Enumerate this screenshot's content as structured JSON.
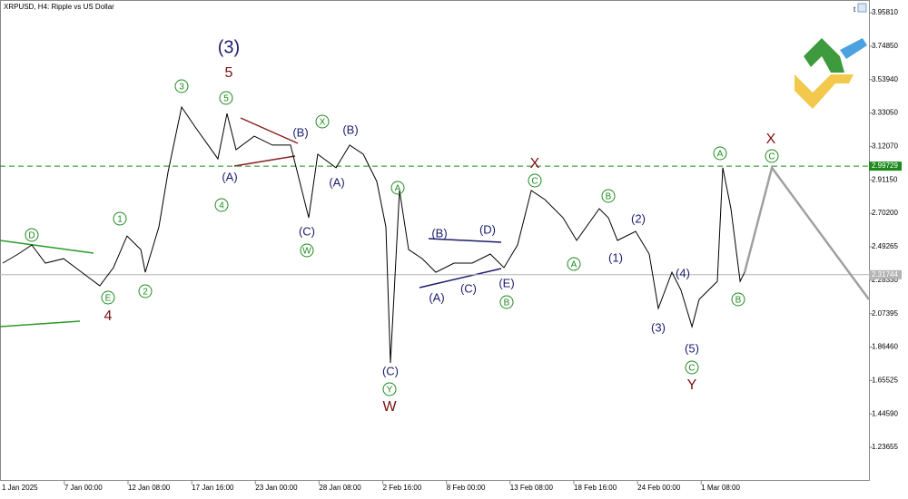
{
  "chart_data": {
    "type": "line",
    "title": "XRPUSD, H4:  Ripple vs US Dollar",
    "series": [
      {
        "color": "#000000",
        "x": [
          0.84,
          2.13,
          3.27,
          4.41,
          5.93,
          7.45,
          8.97,
          10.11,
          11.25,
          12.4,
          12.78,
          13.92,
          14.68,
          15.82,
          16.96,
          18.86,
          19.62,
          20.38,
          21.9,
          23.42,
          24.94,
          26.46,
          27.22,
          28.75,
          29.89,
          31.03,
          32.17,
          32.93,
          33.31,
          34.07,
          34.83,
          35.97,
          37.11,
          38.63,
          40.15,
          41.67,
          42.81,
          43.95,
          45.1,
          46.24,
          47.76,
          48.9,
          50.8,
          51.56,
          52.32,
          53.84,
          54.98,
          55.74,
          56.88,
          57.64,
          58.56,
          59.16,
          60.68,
          61.14,
          61.82,
          62.59,
          62.97
        ],
        "values": [
          2.39,
          2.447,
          2.504,
          2.39,
          2.418,
          2.333,
          2.248,
          2.362,
          2.56,
          2.475,
          2.333,
          2.617,
          2.958,
          3.367,
          3.242,
          3.043,
          3.327,
          3.1,
          3.185,
          3.129,
          3.129,
          2.674,
          3.072,
          2.987,
          3.129,
          3.072,
          2.901,
          2.617,
          1.765,
          2.845,
          2.475,
          2.418,
          2.333,
          2.39,
          2.39,
          2.447,
          2.362,
          2.504,
          2.845,
          2.788,
          2.674,
          2.532,
          2.731,
          2.674,
          2.532,
          2.589,
          2.447,
          2.106,
          2.333,
          2.22,
          1.992,
          2.163,
          2.276,
          2.987,
          2.731,
          2.276,
          2.333
        ]
      },
      {
        "color": "#a0a0a0",
        "x": [
          62.97,
          65.25,
          73.38
        ],
        "values": [
          2.333,
          2.987,
          2.163
        ]
      }
    ],
    "xlim": [
      0.61,
      73.38
    ],
    "xticks": [
      {
        "value": 0,
        "label": "1 Jan 2025"
      },
      {
        "value": 6,
        "label": "7 Jan 00:00"
      },
      {
        "value": 11.33,
        "label": "12 Jan 08:00"
      },
      {
        "value": 16.67,
        "label": "17 Jan 16:00"
      },
      {
        "value": 22,
        "label": "23 Jan 00:00"
      },
      {
        "value": 27.33,
        "label": "28 Jan 08:00"
      },
      {
        "value": 32.67,
        "label": "2 Feb 16:00"
      },
      {
        "value": 38,
        "label": "8 Feb 00:00"
      },
      {
        "value": 43.33,
        "label": "13 Feb 08:00"
      },
      {
        "value": 48.67,
        "label": "18 Feb 16:00"
      },
      {
        "value": 54,
        "label": "24 Feb 00:00"
      },
      {
        "value": 59.33,
        "label": "1 Mar 08:00"
      }
    ],
    "ylim": [
      1.0267,
      4.0376
    ],
    "yticks": [
      {
        "value": 3.9581,
        "label": "3.95810"
      },
      {
        "value": 3.7485,
        "label": "3.74850"
      },
      {
        "value": 3.5394,
        "label": "3.53940"
      },
      {
        "value": 3.3305,
        "label": "3.33050"
      },
      {
        "value": 3.1207,
        "label": "3.12070"
      },
      {
        "value": 2.9115,
        "label": "2.91150"
      },
      {
        "value": 2.702,
        "label": "2.70200"
      },
      {
        "value": 2.49265,
        "label": "2.49265"
      },
      {
        "value": 2.2833,
        "label": "2.28330"
      },
      {
        "value": 2.07395,
        "label": "2.07395"
      },
      {
        "value": 1.8646,
        "label": "1.86460"
      },
      {
        "value": 1.65525,
        "label": "1.65525"
      },
      {
        "value": 1.4459,
        "label": "1.44590"
      },
      {
        "value": 1.23655,
        "label": "1.23655"
      }
    ],
    "price_lines": [
      {
        "value": 2.99729,
        "label": "2.99729",
        "color": "#1e8a1e",
        "dashed": true
      },
      {
        "value": 2.31744,
        "label": "2.31744",
        "color": "#b4b4b4",
        "dashed": false
      }
    ],
    "wave_labels": {
      "navy": [
        "(3)",
        "(B)",
        "(A)",
        "(C)",
        "(B)",
        "(A)",
        "(B)",
        "(D)",
        "(A)",
        "(C)",
        "(E)",
        "(C)",
        "(2)",
        "(1)",
        "(4)",
        "(3)",
        "(5)"
      ],
      "circled": [
        "D",
        "E",
        "1",
        "2",
        "3",
        "5",
        "4",
        "X",
        "W",
        "A",
        "Y",
        "C",
        "B",
        "A",
        "B",
        "A",
        "C",
        "B",
        "C"
      ],
      "maroon": [
        "5",
        "4",
        "X",
        "W",
        "Y",
        "X"
      ]
    },
    "wave_colors": {
      "navy": "#1c1c6e",
      "circled": "#1e8a1e",
      "maroon": "#7a1010"
    }
  }
}
